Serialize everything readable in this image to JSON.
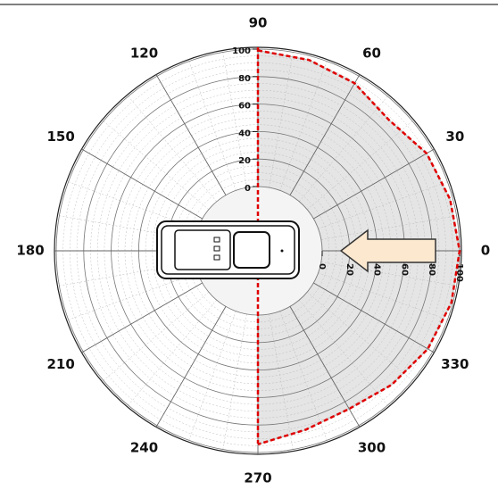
{
  "chart_data": {
    "type": "polar",
    "theta": [
      90,
      75,
      60,
      45,
      30,
      15,
      0,
      345,
      330,
      315,
      300,
      285,
      270
    ],
    "values": [
      99,
      97,
      94,
      88,
      95,
      98,
      100,
      99,
      96,
      91,
      86,
      88,
      94
    ],
    "color": "#e00000",
    "rlim": [
      0,
      100
    ],
    "rticks": [
      0,
      20,
      40,
      60,
      80,
      100
    ],
    "thetaticks": [
      0,
      30,
      60,
      90,
      120,
      150,
      180,
      210,
      240,
      270,
      300,
      330
    ]
  }
}
